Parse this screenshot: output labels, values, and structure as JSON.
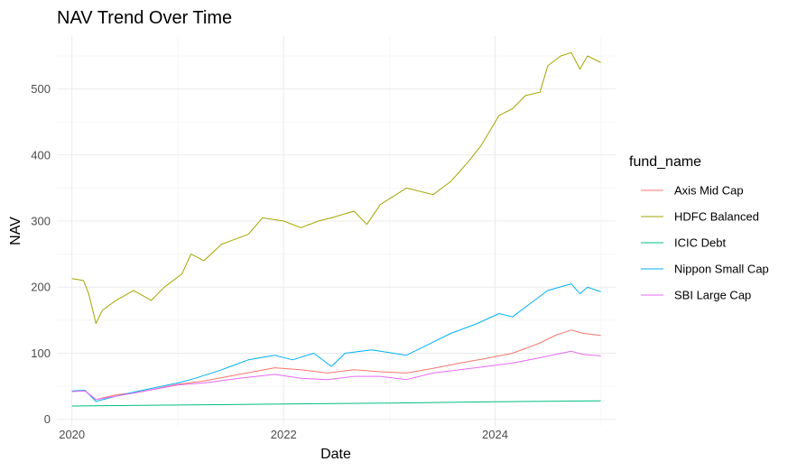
{
  "chart_data": {
    "type": "line",
    "title": "NAV Trend Over Time",
    "xlabel": "Date",
    "ylabel": "NAV",
    "x_range": [
      "2019-11-10",
      "2025-02-20"
    ],
    "x_ticks": [
      {
        "date": "2020-01-01",
        "label": "2020"
      },
      {
        "date": "2022-01-01",
        "label": "2022"
      },
      {
        "date": "2024-01-01",
        "label": "2024"
      }
    ],
    "ylim": [
      -10,
      580
    ],
    "y_ticks": [
      0,
      100,
      200,
      300,
      400,
      500
    ],
    "grid": true,
    "legend": {
      "title": "fund_name",
      "position": "right"
    },
    "series": [
      {
        "name": "Axis Mid Cap",
        "color": "#F8766D",
        "points": [
          [
            "2020-01-01",
            42
          ],
          [
            "2020-02-15",
            43
          ],
          [
            "2020-03-24",
            30
          ],
          [
            "2020-06-01",
            37
          ],
          [
            "2020-09-01",
            42
          ],
          [
            "2021-01-01",
            53
          ],
          [
            "2021-04-01",
            58
          ],
          [
            "2021-08-01",
            68
          ],
          [
            "2021-12-01",
            78
          ],
          [
            "2022-03-01",
            75
          ],
          [
            "2022-06-01",
            70
          ],
          [
            "2022-09-01",
            75
          ],
          [
            "2022-12-01",
            72
          ],
          [
            "2023-03-01",
            70
          ],
          [
            "2023-06-01",
            77
          ],
          [
            "2023-09-01",
            85
          ],
          [
            "2023-12-01",
            92
          ],
          [
            "2024-03-01",
            100
          ],
          [
            "2024-06-01",
            115
          ],
          [
            "2024-08-01",
            128
          ],
          [
            "2024-09-20",
            135
          ],
          [
            "2024-11-01",
            130
          ],
          [
            "2024-12-31",
            127
          ]
        ]
      },
      {
        "name": "HDFC Balanced",
        "color": "#A3A500",
        "points": [
          [
            "2020-01-01",
            213
          ],
          [
            "2020-02-10",
            210
          ],
          [
            "2020-02-28",
            190
          ],
          [
            "2020-03-24",
            145
          ],
          [
            "2020-04-15",
            165
          ],
          [
            "2020-06-01",
            180
          ],
          [
            "2020-08-01",
            195
          ],
          [
            "2020-10-01",
            180
          ],
          [
            "2020-11-15",
            200
          ],
          [
            "2021-01-15",
            220
          ],
          [
            "2021-02-15",
            250
          ],
          [
            "2021-04-01",
            240
          ],
          [
            "2021-06-01",
            265
          ],
          [
            "2021-09-01",
            280
          ],
          [
            "2021-10-20",
            305
          ],
          [
            "2022-01-01",
            300
          ],
          [
            "2022-03-01",
            290
          ],
          [
            "2022-05-01",
            300
          ],
          [
            "2022-06-15",
            305
          ],
          [
            "2022-09-01",
            315
          ],
          [
            "2022-10-15",
            295
          ],
          [
            "2022-12-01",
            325
          ],
          [
            "2023-03-01",
            350
          ],
          [
            "2023-06-01",
            340
          ],
          [
            "2023-08-01",
            360
          ],
          [
            "2023-10-01",
            390
          ],
          [
            "2023-11-15",
            415
          ],
          [
            "2024-01-15",
            460
          ],
          [
            "2024-03-01",
            470
          ],
          [
            "2024-04-15",
            490
          ],
          [
            "2024-06-04",
            495
          ],
          [
            "2024-07-01",
            535
          ],
          [
            "2024-08-15",
            550
          ],
          [
            "2024-09-20",
            555
          ],
          [
            "2024-10-20",
            530
          ],
          [
            "2024-11-15",
            550
          ],
          [
            "2024-12-31",
            540
          ]
        ]
      },
      {
        "name": "ICIC Debt",
        "color": "#00BF7D",
        "points": [
          [
            "2020-01-01",
            20
          ],
          [
            "2021-01-01",
            21.5
          ],
          [
            "2022-01-01",
            23
          ],
          [
            "2023-01-01",
            24.5
          ],
          [
            "2024-01-01",
            26.5
          ],
          [
            "2024-12-31",
            28
          ]
        ]
      },
      {
        "name": "Nippon Small Cap",
        "color": "#00B0F6",
        "points": [
          [
            "2020-01-01",
            43
          ],
          [
            "2020-02-15",
            44
          ],
          [
            "2020-03-24",
            27
          ],
          [
            "2020-06-01",
            35
          ],
          [
            "2020-09-01",
            44
          ],
          [
            "2021-01-01",
            55
          ],
          [
            "2021-03-01",
            62
          ],
          [
            "2021-06-01",
            75
          ],
          [
            "2021-09-01",
            90
          ],
          [
            "2021-12-01",
            97
          ],
          [
            "2022-02-01",
            90
          ],
          [
            "2022-04-15",
            100
          ],
          [
            "2022-06-15",
            80
          ],
          [
            "2022-08-01",
            100
          ],
          [
            "2022-11-01",
            105
          ],
          [
            "2023-03-01",
            97
          ],
          [
            "2023-05-01",
            110
          ],
          [
            "2023-08-01",
            130
          ],
          [
            "2023-11-01",
            145
          ],
          [
            "2024-01-15",
            160
          ],
          [
            "2024-03-01",
            155
          ],
          [
            "2024-05-01",
            175
          ],
          [
            "2024-07-01",
            195
          ],
          [
            "2024-09-20",
            205
          ],
          [
            "2024-10-20",
            190
          ],
          [
            "2024-11-15",
            200
          ],
          [
            "2024-12-31",
            193
          ]
        ]
      },
      {
        "name": "SBI Large Cap",
        "color": "#E76BF3",
        "points": [
          [
            "2020-01-01",
            42
          ],
          [
            "2020-02-15",
            43
          ],
          [
            "2020-03-24",
            30
          ],
          [
            "2020-06-01",
            35
          ],
          [
            "2020-09-01",
            42
          ],
          [
            "2021-01-01",
            52
          ],
          [
            "2021-04-01",
            55
          ],
          [
            "2021-08-01",
            62
          ],
          [
            "2021-12-01",
            68
          ],
          [
            "2022-03-01",
            62
          ],
          [
            "2022-06-01",
            60
          ],
          [
            "2022-09-01",
            65
          ],
          [
            "2022-12-01",
            65
          ],
          [
            "2023-03-01",
            60
          ],
          [
            "2023-06-01",
            70
          ],
          [
            "2023-09-01",
            75
          ],
          [
            "2023-12-01",
            80
          ],
          [
            "2024-03-01",
            85
          ],
          [
            "2024-06-01",
            93
          ],
          [
            "2024-09-20",
            103
          ],
          [
            "2024-11-01",
            98
          ],
          [
            "2024-12-31",
            96
          ]
        ]
      }
    ]
  }
}
